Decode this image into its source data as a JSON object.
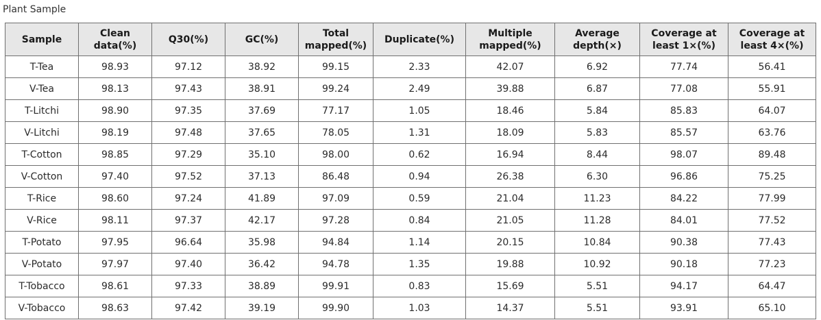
{
  "caption": "Plant Sample",
  "columns": [
    "Sample",
    "Clean\ndata(%)",
    "Q30(%)",
    "GC(%)",
    "Total\nmapped(%)",
    "Duplicate(%)",
    "Multiple\nmapped(%)",
    "Average\ndepth(×)",
    "Coverage at\nleast 1×(%)",
    "Coverage at\nleast 4×(%)"
  ],
  "rows": [
    [
      "T-Tea",
      "98.93",
      "97.12",
      "38.92",
      "99.15",
      "2.33",
      "42.07",
      "6.92",
      "77.74",
      "56.41"
    ],
    [
      "V-Tea",
      "98.13",
      "97.43",
      "38.91",
      "99.24",
      "2.49",
      "39.88",
      "6.87",
      "77.08",
      "55.91"
    ],
    [
      "T-Litchi",
      "98.90",
      "97.35",
      "37.69",
      "77.17",
      "1.05",
      "18.46",
      "5.84",
      "85.83",
      "64.07"
    ],
    [
      "V-Litchi",
      "98.19",
      "97.48",
      "37.65",
      "78.05",
      "1.31",
      "18.09",
      "5.83",
      "85.57",
      "63.76"
    ],
    [
      "T-Cotton",
      "98.85",
      "97.29",
      "35.10",
      "98.00",
      "0.62",
      "16.94",
      "8.44",
      "98.07",
      "89.48"
    ],
    [
      "V-Cotton",
      "97.40",
      "97.52",
      "37.13",
      "86.48",
      "0.94",
      "26.38",
      "6.30",
      "96.86",
      "75.25"
    ],
    [
      "T-Rice",
      "98.60",
      "97.24",
      "41.89",
      "97.09",
      "0.59",
      "21.04",
      "11.23",
      "84.22",
      "77.99"
    ],
    [
      "V-Rice",
      "98.11",
      "97.37",
      "42.17",
      "97.28",
      "0.84",
      "21.05",
      "11.28",
      "84.01",
      "77.52"
    ],
    [
      "T-Potato",
      "97.95",
      "96.64",
      "35.98",
      "94.84",
      "1.14",
      "20.15",
      "10.84",
      "90.38",
      "77.43"
    ],
    [
      "V-Potato",
      "97.97",
      "97.40",
      "36.42",
      "94.78",
      "1.35",
      "19.88",
      "10.92",
      "90.18",
      "77.23"
    ],
    [
      "T-Tobacco",
      "98.61",
      "97.33",
      "38.89",
      "99.91",
      "0.83",
      "15.69",
      "5.51",
      "94.17",
      "64.47"
    ],
    [
      "V-Tobacco",
      "98.63",
      "97.42",
      "39.19",
      "99.90",
      "1.03",
      "14.37",
      "5.51",
      "93.91",
      "65.10"
    ]
  ]
}
